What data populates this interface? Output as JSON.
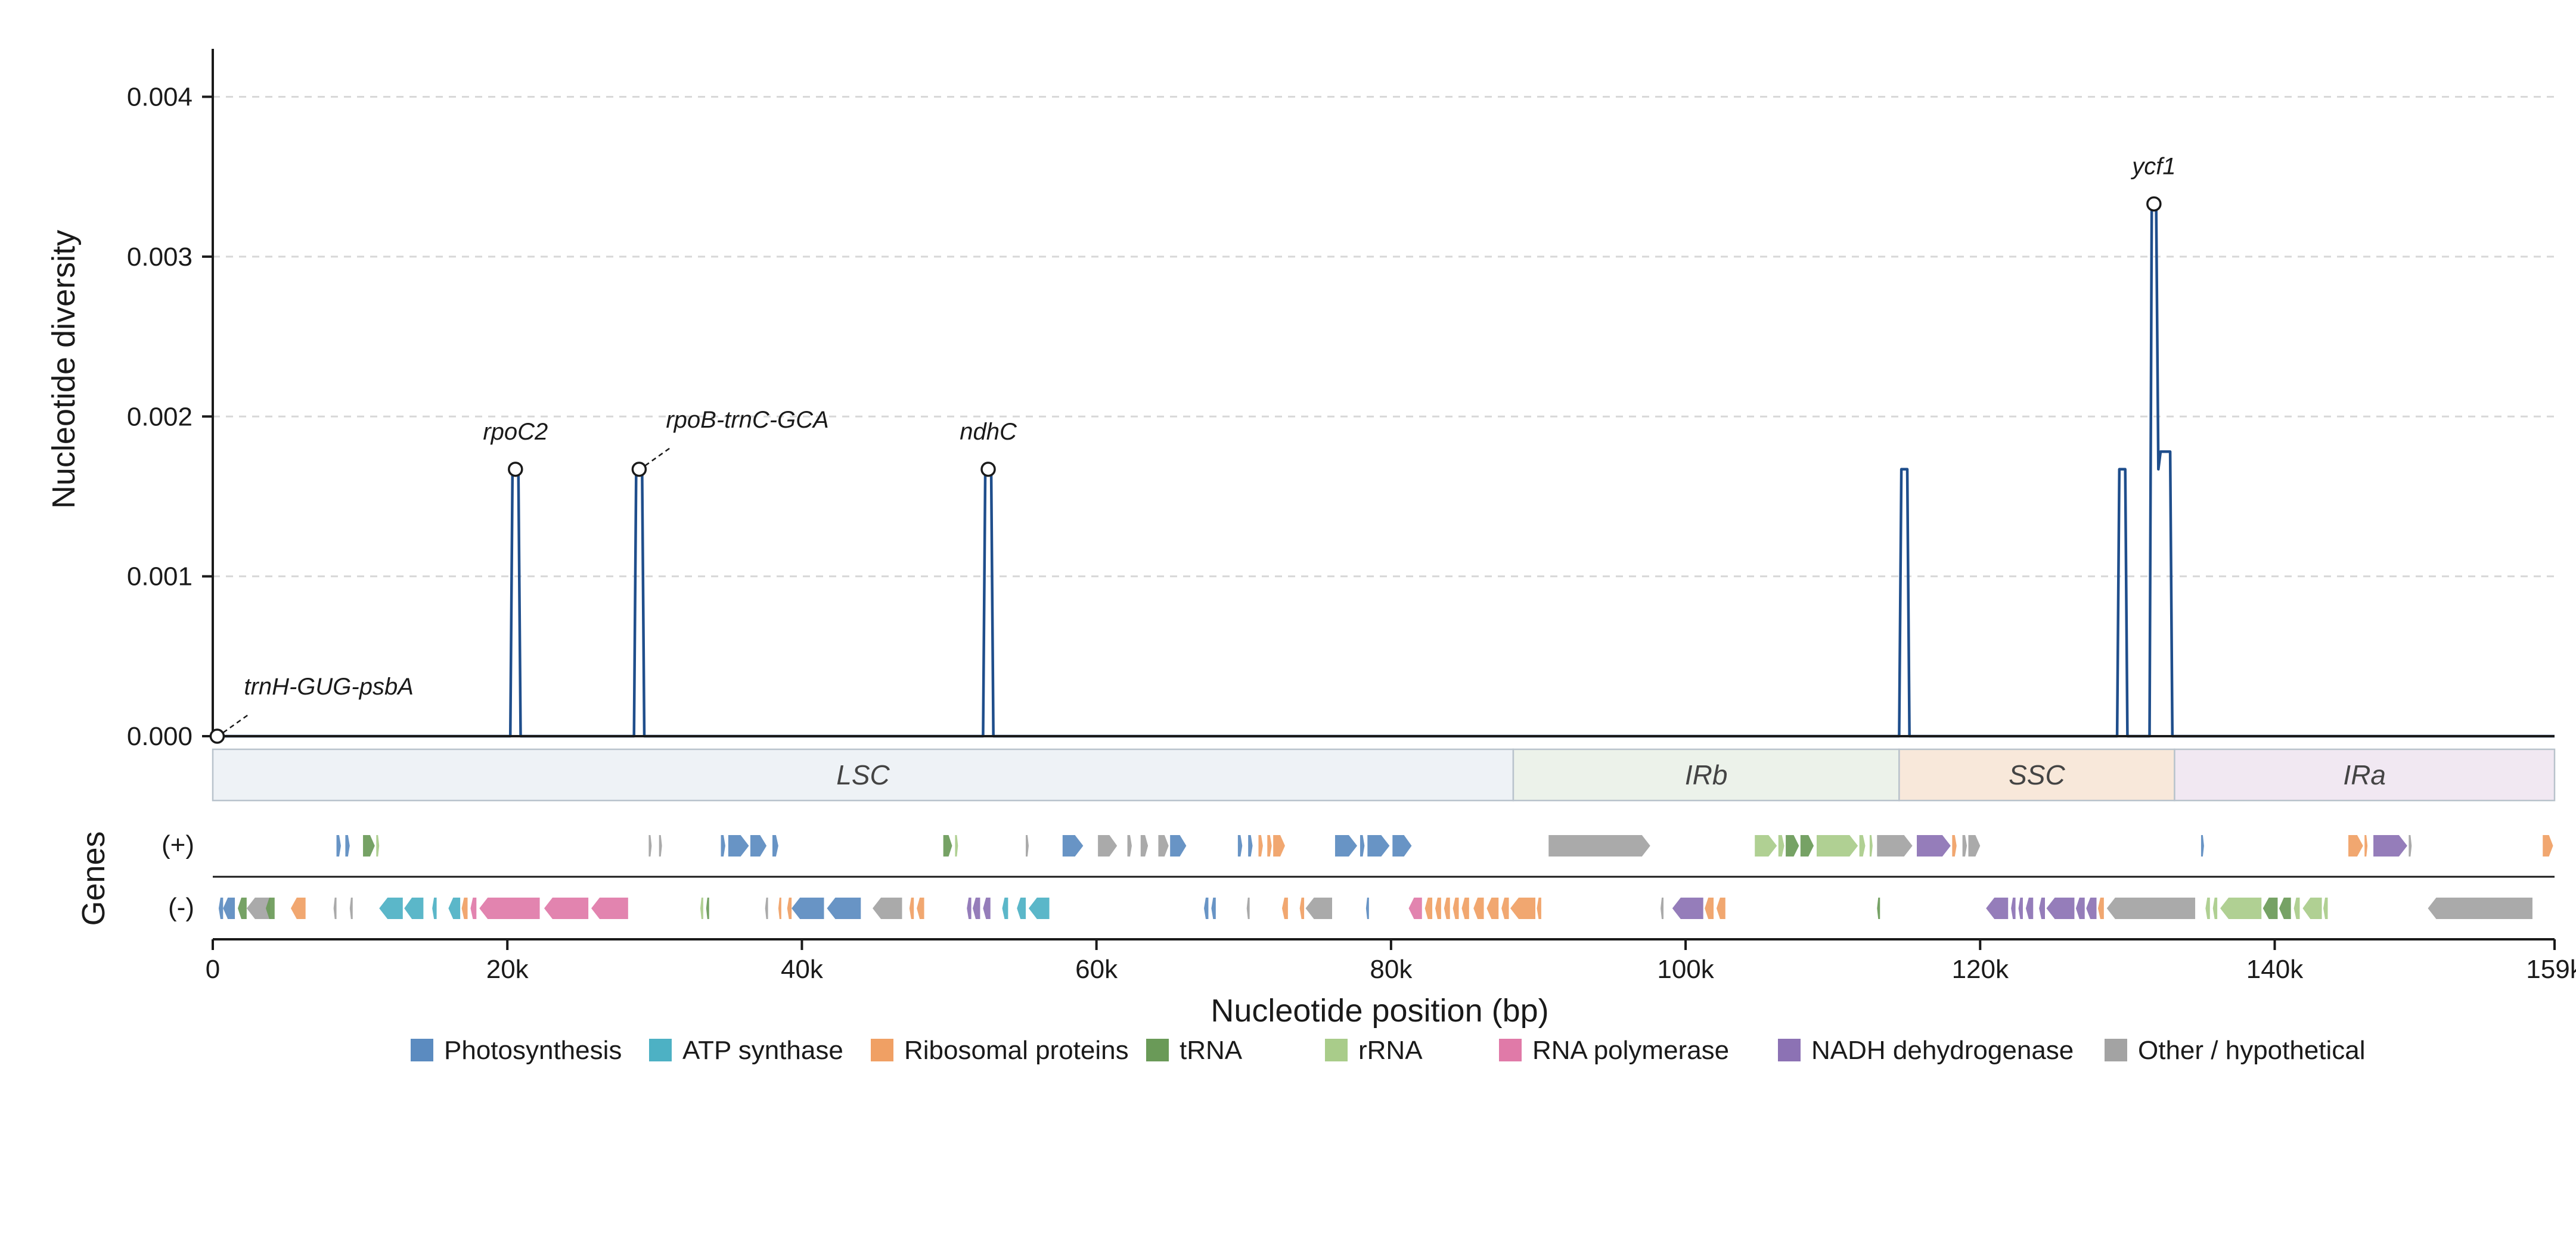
{
  "chart_data": {
    "type": "line",
    "ylabel": "Nucleotide diversity",
    "xlabel": "Nucleotide position (bp)",
    "xlim": [
      0,
      159000
    ],
    "ylim": [
      0,
      0.0043
    ],
    "grid": "y-dashed",
    "y_ticks": [
      0.0,
      0.001,
      0.002,
      0.003,
      0.004
    ],
    "y_tick_labels": [
      "0.000",
      "0.001",
      "0.002",
      "0.003",
      "0.004"
    ],
    "x_ticks": [
      0,
      20000,
      40000,
      60000,
      80000,
      100000,
      120000,
      140000,
      159000
    ],
    "x_tick_labels": [
      "0",
      "20k",
      "40k",
      "60k",
      "80k",
      "100k",
      "120k",
      "140k",
      "159k"
    ],
    "series": [
      {
        "color": "#1f4e8c",
        "x": [
          0,
          20200,
          20350,
          20750,
          20900,
          28600,
          28750,
          29150,
          29300,
          52300,
          52450,
          52850,
          53000,
          114500,
          114650,
          115050,
          115200,
          129300,
          129450,
          129850,
          130000,
          131500,
          131650,
          131950,
          132100,
          132250,
          132900,
          133050,
          159000
        ],
        "y": [
          0,
          0,
          0.00167,
          0.00167,
          0,
          0,
          0.00167,
          0.00167,
          0,
          0,
          0.00167,
          0.00167,
          0,
          0,
          0.00167,
          0.00167,
          0,
          0,
          0.00167,
          0.00167,
          0,
          0,
          0.00333,
          0.00333,
          0.00167,
          0.00178,
          0.00178,
          0,
          0
        ]
      }
    ],
    "annotations": [
      {
        "label": "trnH-GUG-psbA",
        "x": 300,
        "y": 0.0,
        "leader": true
      },
      {
        "label": "rpoC2",
        "x": 20550,
        "y": 0.00167,
        "leader": false
      },
      {
        "label": "rpoB-trnC-GCA",
        "x": 28950,
        "y": 0.00167,
        "leader": true
      },
      {
        "label": "ndhC",
        "x": 52650,
        "y": 0.00167,
        "leader": false
      },
      {
        "label": "ycf1",
        "x": 131800,
        "y": 0.00333,
        "leader": false
      }
    ],
    "regions": [
      {
        "label": "LSC",
        "start": 0,
        "end": 88300,
        "color": "#eef2f6"
      },
      {
        "label": "IRb",
        "start": 88300,
        "end": 114500,
        "color": "#ecf2ea"
      },
      {
        "label": "SSC",
        "start": 114500,
        "end": 133200,
        "color": "#f8e8da"
      },
      {
        "label": "IRa",
        "start": 133200,
        "end": 159000,
        "color": "#f1e8f2"
      }
    ],
    "gene_track_label": "Genes",
    "strand_labels": [
      "(+)",
      "(-)"
    ],
    "legend": [
      {
        "label": "Photosynthesis",
        "color": "#5b8bc0"
      },
      {
        "label": "ATP synthase",
        "color": "#4db1c4"
      },
      {
        "label": "Ribosomal proteins",
        "color": "#f0a064"
      },
      {
        "label": "tRNA",
        "color": "#6a9a58"
      },
      {
        "label": "rRNA",
        "color": "#a9cc8a"
      },
      {
        "label": "RNA polymerase",
        "color": "#e07aa8"
      },
      {
        "label": "NADH dehydrogenase",
        "color": "#8c72b4"
      },
      {
        "label": "Other / hypothetical",
        "color": "#a3a3a3"
      }
    ],
    "legend_position": "bottom",
    "genes_plus": [
      {
        "s": 8400,
        "e": 8700,
        "c": "photo"
      },
      {
        "s": 9000,
        "e": 9300,
        "c": "photo"
      },
      {
        "s": 10200,
        "e": 11000,
        "c": "trna"
      },
      {
        "s": 11100,
        "e": 11300,
        "c": "rrna"
      },
      {
        "s": 29600,
        "e": 29800,
        "c": "other"
      },
      {
        "s": 30300,
        "e": 30500,
        "c": "other"
      },
      {
        "s": 34500,
        "e": 34800,
        "c": "photo"
      },
      {
        "s": 35000,
        "e": 36400,
        "c": "photo"
      },
      {
        "s": 36500,
        "e": 37600,
        "c": "photo"
      },
      {
        "s": 38000,
        "e": 38400,
        "c": "photo"
      },
      {
        "s": 49600,
        "e": 50200,
        "c": "trna"
      },
      {
        "s": 50400,
        "e": 50600,
        "c": "rrna"
      },
      {
        "s": 55200,
        "e": 55400,
        "c": "other"
      },
      {
        "s": 57700,
        "e": 59100,
        "c": "photo"
      },
      {
        "s": 60100,
        "e": 61400,
        "c": "other"
      },
      {
        "s": 62100,
        "e": 62400,
        "c": "other"
      },
      {
        "s": 63000,
        "e": 63500,
        "c": "other"
      },
      {
        "s": 64200,
        "e": 64900,
        "c": "other"
      },
      {
        "s": 65000,
        "e": 66100,
        "c": "photo"
      },
      {
        "s": 69600,
        "e": 69900,
        "c": "photo"
      },
      {
        "s": 70300,
        "e": 70600,
        "c": "photo"
      },
      {
        "s": 71000,
        "e": 71300,
        "c": "ribo"
      },
      {
        "s": 71600,
        "e": 71900,
        "c": "ribo"
      },
      {
        "s": 72000,
        "e": 72800,
        "c": "ribo"
      },
      {
        "s": 76200,
        "e": 77700,
        "c": "photo"
      },
      {
        "s": 77900,
        "e": 78200,
        "c": "photo"
      },
      {
        "s": 78400,
        "e": 79900,
        "c": "photo"
      },
      {
        "s": 80100,
        "e": 81400,
        "c": "photo"
      },
      {
        "s": 90700,
        "e": 97600,
        "c": "other"
      },
      {
        "s": 104700,
        "e": 106200,
        "c": "rrna"
      },
      {
        "s": 106300,
        "e": 106700,
        "c": "rrna"
      },
      {
        "s": 106800,
        "e": 107700,
        "c": "trna"
      },
      {
        "s": 107800,
        "e": 108700,
        "c": "trna"
      },
      {
        "s": 108900,
        "e": 111700,
        "c": "rrna"
      },
      {
        "s": 111800,
        "e": 112200,
        "c": "rrna"
      },
      {
        "s": 112500,
        "e": 112700,
        "c": "rrna"
      },
      {
        "s": 113000,
        "e": 115400,
        "c": "other"
      },
      {
        "s": 115700,
        "e": 118000,
        "c": "nadh"
      },
      {
        "s": 118100,
        "e": 118400,
        "c": "ribo"
      },
      {
        "s": 118800,
        "e": 119100,
        "c": "other"
      },
      {
        "s": 119200,
        "e": 120000,
        "c": "other"
      },
      {
        "s": 135000,
        "e": 135200,
        "c": "photo"
      },
      {
        "s": 145000,
        "e": 146000,
        "c": "ribo"
      },
      {
        "s": 146100,
        "e": 146300,
        "c": "ribo"
      },
      {
        "s": 146700,
        "e": 149000,
        "c": "nadh"
      },
      {
        "s": 149100,
        "e": 149300,
        "c": "other"
      },
      {
        "s": 158200,
        "e": 158900,
        "c": "ribo"
      }
    ],
    "genes_minus": [
      {
        "s": 400,
        "e": 700,
        "c": "photo"
      },
      {
        "s": 700,
        "e": 1500,
        "c": "photo"
      },
      {
        "s": 1700,
        "e": 2300,
        "c": "trna"
      },
      {
        "s": 2300,
        "e": 3900,
        "c": "other"
      },
      {
        "s": 3600,
        "e": 4200,
        "c": "trna"
      },
      {
        "s": 5300,
        "e": 6300,
        "c": "ribo"
      },
      {
        "s": 8200,
        "e": 8400,
        "c": "other"
      },
      {
        "s": 9300,
        "e": 9500,
        "c": "other"
      },
      {
        "s": 11300,
        "e": 12900,
        "c": "atp"
      },
      {
        "s": 13000,
        "e": 14300,
        "c": "atp"
      },
      {
        "s": 14900,
        "e": 15200,
        "c": "atp"
      },
      {
        "s": 16000,
        "e": 16800,
        "c": "atp"
      },
      {
        "s": 16900,
        "e": 17300,
        "c": "ribo"
      },
      {
        "s": 17500,
        "e": 17900,
        "c": "rnapol"
      },
      {
        "s": 18100,
        "e": 22200,
        "c": "rnapol"
      },
      {
        "s": 22500,
        "e": 25500,
        "c": "rnapol"
      },
      {
        "s": 25700,
        "e": 28200,
        "c": "rnapol"
      },
      {
        "s": 33100,
        "e": 33300,
        "c": "rrna"
      },
      {
        "s": 33500,
        "e": 33700,
        "c": "trna"
      },
      {
        "s": 37500,
        "e": 37700,
        "c": "other"
      },
      {
        "s": 38400,
        "e": 38600,
        "c": "ribo"
      },
      {
        "s": 39000,
        "e": 39300,
        "c": "ribo"
      },
      {
        "s": 39300,
        "e": 41500,
        "c": "photo"
      },
      {
        "s": 41700,
        "e": 44000,
        "c": "photo"
      },
      {
        "s": 44800,
        "e": 46800,
        "c": "other"
      },
      {
        "s": 47300,
        "e": 47600,
        "c": "ribo"
      },
      {
        "s": 47800,
        "e": 48300,
        "c": "ribo"
      },
      {
        "s": 51200,
        "e": 51500,
        "c": "nadh"
      },
      {
        "s": 51600,
        "e": 52100,
        "c": "nadh"
      },
      {
        "s": 52300,
        "e": 52800,
        "c": "nadh"
      },
      {
        "s": 53600,
        "e": 54000,
        "c": "atp"
      },
      {
        "s": 54600,
        "e": 55200,
        "c": "atp"
      },
      {
        "s": 55400,
        "e": 56800,
        "c": "atp"
      },
      {
        "s": 67300,
        "e": 67600,
        "c": "photo"
      },
      {
        "s": 67800,
        "e": 68100,
        "c": "photo"
      },
      {
        "s": 70200,
        "e": 70400,
        "c": "other"
      },
      {
        "s": 72600,
        "e": 73000,
        "c": "ribo"
      },
      {
        "s": 73800,
        "e": 74100,
        "c": "ribo"
      },
      {
        "s": 74200,
        "e": 76000,
        "c": "other"
      },
      {
        "s": 78300,
        "e": 78500,
        "c": "photo"
      },
      {
        "s": 81200,
        "e": 82100,
        "c": "rnapol"
      },
      {
        "s": 82300,
        "e": 82800,
        "c": "ribo"
      },
      {
        "s": 83000,
        "e": 83400,
        "c": "ribo"
      },
      {
        "s": 83600,
        "e": 84000,
        "c": "ribo"
      },
      {
        "s": 84200,
        "e": 84600,
        "c": "ribo"
      },
      {
        "s": 84800,
        "e": 85300,
        "c": "ribo"
      },
      {
        "s": 85600,
        "e": 86300,
        "c": "ribo"
      },
      {
        "s": 86500,
        "e": 87300,
        "c": "ribo"
      },
      {
        "s": 87500,
        "e": 88000,
        "c": "ribo"
      },
      {
        "s": 88100,
        "e": 89800,
        "c": "ribo"
      },
      {
        "s": 89900,
        "e": 90200,
        "c": "ribo"
      },
      {
        "s": 98300,
        "e": 98500,
        "c": "other"
      },
      {
        "s": 99100,
        "e": 101200,
        "c": "nadh"
      },
      {
        "s": 101300,
        "e": 101900,
        "c": "ribo"
      },
      {
        "s": 102100,
        "e": 102700,
        "c": "ribo"
      },
      {
        "s": 113000,
        "e": 113200,
        "c": "trna"
      },
      {
        "s": 120400,
        "e": 121900,
        "c": "nadh"
      },
      {
        "s": 122100,
        "e": 122400,
        "c": "nadh"
      },
      {
        "s": 122600,
        "e": 122900,
        "c": "nadh"
      },
      {
        "s": 123100,
        "e": 123600,
        "c": "nadh"
      },
      {
        "s": 124000,
        "e": 124400,
        "c": "nadh"
      },
      {
        "s": 124500,
        "e": 126400,
        "c": "nadh"
      },
      {
        "s": 126500,
        "e": 127100,
        "c": "nadh"
      },
      {
        "s": 127200,
        "e": 127900,
        "c": "nadh"
      },
      {
        "s": 128000,
        "e": 128400,
        "c": "ribo"
      },
      {
        "s": 128600,
        "e": 134600,
        "c": "other"
      },
      {
        "s": 135300,
        "e": 135600,
        "c": "rrna"
      },
      {
        "s": 135800,
        "e": 136100,
        "c": "rrna"
      },
      {
        "s": 136300,
        "e": 139100,
        "c": "rrna"
      },
      {
        "s": 139200,
        "e": 140200,
        "c": "trna"
      },
      {
        "s": 140300,
        "e": 141100,
        "c": "trna"
      },
      {
        "s": 141300,
        "e": 141700,
        "c": "rrna"
      },
      {
        "s": 141900,
        "e": 143200,
        "c": "rrna"
      },
      {
        "s": 143300,
        "e": 143600,
        "c": "rrna"
      },
      {
        "s": 150400,
        "e": 157500,
        "c": "other"
      }
    ]
  }
}
